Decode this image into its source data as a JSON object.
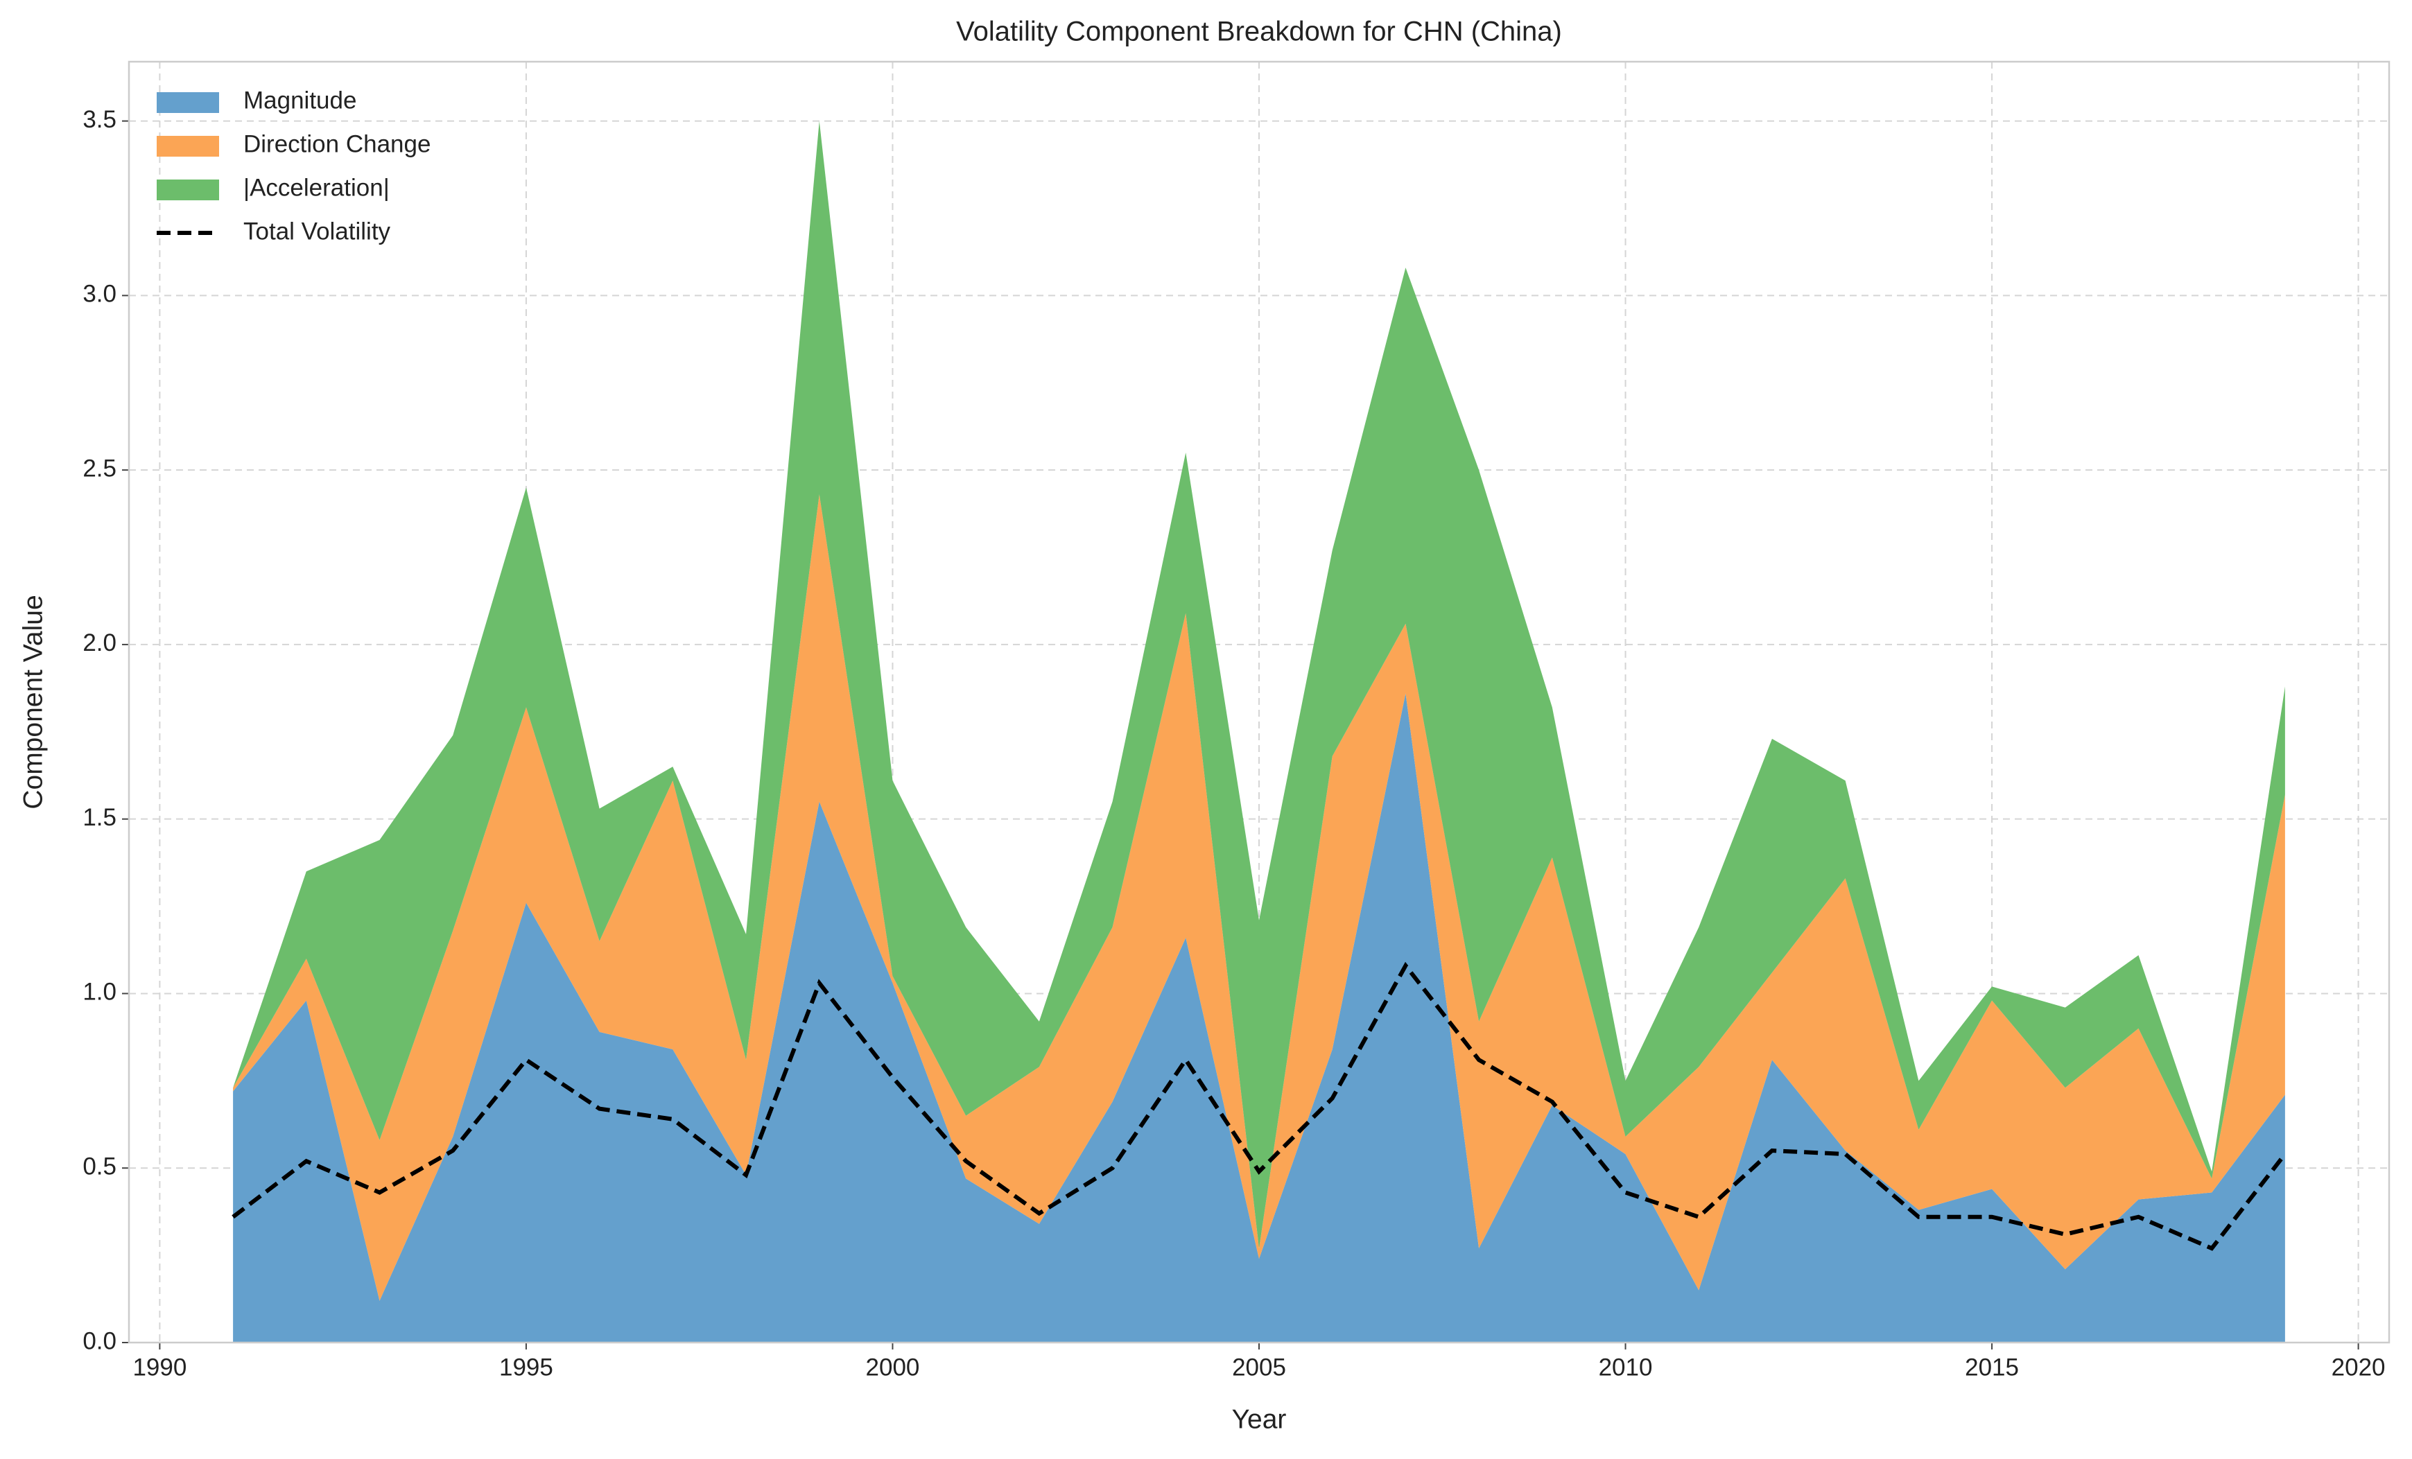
{
  "chart_data": {
    "type": "stacked_area",
    "title": "Volatility Component Breakdown for CHN (China)",
    "xlabel": "Year",
    "ylabel": "Component Value",
    "x": [
      1991,
      1992,
      1993,
      1994,
      1995,
      1996,
      1997,
      1998,
      1999,
      2000,
      2001,
      2002,
      2003,
      2004,
      2005,
      2006,
      2007,
      2008,
      2009,
      2010,
      2011,
      2012,
      2013,
      2014,
      2015,
      2016,
      2017,
      2018,
      2019
    ],
    "series": [
      {
        "name": "Magnitude",
        "color": "#64a0cd",
        "values": [
          0.72,
          0.98,
          0.12,
          0.59,
          1.26,
          0.89,
          0.84,
          0.48,
          1.55,
          1.03,
          0.47,
          0.34,
          0.69,
          1.16,
          0.24,
          0.84,
          1.86,
          0.27,
          0.68,
          0.54,
          0.15,
          0.81,
          0.55,
          0.38,
          0.44,
          0.21,
          0.41,
          0.43,
          0.71
        ]
      },
      {
        "name": "Direction Change",
        "color": "#fba555",
        "values": [
          0.01,
          0.12,
          0.46,
          0.59,
          0.56,
          0.26,
          0.77,
          0.33,
          0.88,
          0.02,
          0.18,
          0.45,
          0.5,
          0.93,
          0.03,
          0.84,
          0.2,
          0.65,
          0.71,
          0.05,
          0.64,
          0.25,
          0.78,
          0.23,
          0.54,
          0.52,
          0.49,
          0.04,
          0.86
        ]
      },
      {
        "name": "|Acceleration|",
        "color": "#6cbd6b",
        "values": [
          0,
          0.25,
          0.86,
          0.56,
          0.63,
          0.38,
          0.04,
          0.36,
          1.07,
          0.56,
          0.54,
          0.13,
          0.36,
          0.46,
          0.94,
          0.59,
          1.02,
          1.58,
          0.43,
          0.16,
          0.4,
          0.67,
          0.28,
          0.14,
          0.04,
          0.23,
          0.21,
          0.02,
          0.31
        ]
      }
    ],
    "line": {
      "name": "Total Volatility",
      "color": "#000000",
      "values": [
        0.36,
        0.52,
        0.43,
        0.55,
        0.81,
        0.67,
        0.64,
        0.48,
        1.03,
        0.76,
        0.52,
        0.37,
        0.5,
        0.81,
        0.49,
        0.7,
        1.08,
        0.81,
        0.69,
        0.43,
        0.36,
        0.55,
        0.54,
        0.36,
        0.36,
        0.31,
        0.36,
        0.27,
        0.54
      ]
    },
    "xlim": [
      1989.58,
      2020.42
    ],
    "xticks": [
      1990,
      1995,
      2000,
      2005,
      2010,
      2015,
      2020
    ],
    "ylim": [
      0,
      3.67
    ],
    "yticks": [
      {
        "value": 0,
        "label": "0.0"
      },
      {
        "value": 0.5,
        "label": "0.5"
      },
      {
        "value": 1,
        "label": "1.0"
      },
      {
        "value": 1.5,
        "label": "1.5"
      },
      {
        "value": 2,
        "label": "2.0"
      },
      {
        "value": 2.5,
        "label": "2.5"
      },
      {
        "value": 3,
        "label": "3.0"
      },
      {
        "value": 3.5,
        "label": "3.5"
      }
    ],
    "grid": true,
    "legend": "upper left"
  }
}
